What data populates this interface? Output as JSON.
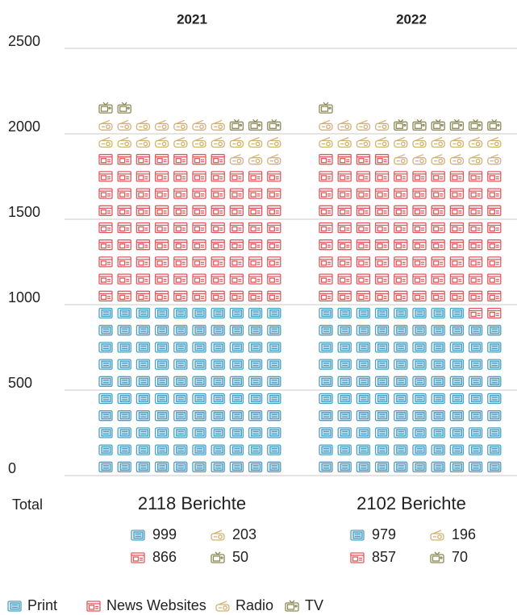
{
  "chart_data": {
    "type": "pictogram",
    "categories": [
      "2021",
      "2022"
    ],
    "series": [
      {
        "name": "Print",
        "color": "#4a9fc4",
        "values": [
          999,
          979
        ]
      },
      {
        "name": "News Websites",
        "color": "#e0585b",
        "values": [
          866,
          857
        ]
      },
      {
        "name": "Radio",
        "color": "#d2b273",
        "values": [
          203,
          196
        ]
      },
      {
        "name": "TV",
        "color": "#8c8a55",
        "values": [
          50,
          70
        ]
      }
    ],
    "ylim": [
      0,
      2500
    ],
    "yticks": [
      0,
      500,
      1000,
      1500,
      2000,
      2500
    ],
    "grid": true,
    "totals": {
      "label": "Total",
      "values": [
        2118,
        2102
      ],
      "value_labels": [
        "2118 Berichte",
        "2102 Berichte"
      ]
    }
  }
}
